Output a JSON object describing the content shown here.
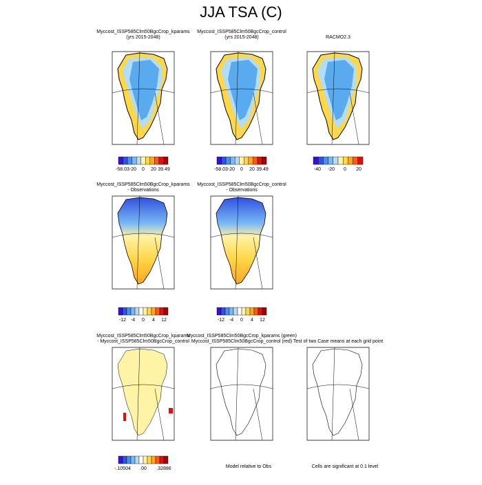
{
  "title": "JJA TSA (C)",
  "panels": [
    {
      "title": [
        "Myccost_ISSP585Clm50BgcCrop_kparams",
        "(yrs 2015-2048)"
      ],
      "colorbar": {
        "colors": [
          "#3a0fd9",
          "#2f52e0",
          "#4a8ff0",
          "#7ab8f5",
          "#b3dcf5",
          "#fff3a6",
          "#ffd84a",
          "#ffa81f",
          "#ff5a10",
          "#e01010",
          "#a80000"
        ],
        "labels": [
          "-58.03",
          "-20",
          "0",
          "20",
          "39.49"
        ]
      }
    },
    {
      "title": [
        "Myccost_ISSP585Clm50BgcCrop_control",
        "(yrs 2015-2048)"
      ],
      "colorbar": {
        "colors": [
          "#3a0fd9",
          "#2f52e0",
          "#4a8ff0",
          "#7ab8f5",
          "#b3dcf5",
          "#fff3a6",
          "#ffd84a",
          "#ffa81f",
          "#ff5a10",
          "#e01010",
          "#a80000"
        ],
        "labels": [
          "-58.03",
          "-20",
          "0",
          "20",
          "39.49"
        ]
      }
    },
    {
      "title": [
        "RACMO2.3"
      ],
      "colorbar": {
        "colors": [
          "#3a0fd9",
          "#2f52e0",
          "#4a8ff0",
          "#7ab8f5",
          "#b3dcf5",
          "#fff3a6",
          "#ffd84a",
          "#ffa81f",
          "#ff5a10",
          "#e01010"
        ],
        "labels": [
          "-40",
          "-20",
          "0",
          "20"
        ]
      }
    },
    {
      "title": [
        "Myccost_ISSP585Clm50BgcCrop_kparams",
        "- Observations"
      ],
      "colorbar": {
        "colors": [
          "#3a0fd9",
          "#2f52e0",
          "#4a8ff0",
          "#7ab8f5",
          "#b3dcf5",
          "#ffffff",
          "#fff3a6",
          "#ffd84a",
          "#ffa81f",
          "#ff5a10",
          "#e01010",
          "#a80000"
        ],
        "labels": [
          "-12",
          "-4",
          "0",
          "4",
          "12"
        ]
      }
    },
    {
      "title": [
        "Myccost_ISSP585Clm50BgcCrop_control",
        "- Observations"
      ],
      "colorbar": {
        "colors": [
          "#3a0fd9",
          "#2f52e0",
          "#4a8ff0",
          "#7ab8f5",
          "#b3dcf5",
          "#ffffff",
          "#fff3a6",
          "#ffd84a",
          "#ffa81f",
          "#ff5a10",
          "#e01010",
          "#a80000"
        ],
        "labels": [
          "-12",
          "-4",
          "0",
          "4",
          "12"
        ]
      }
    },
    {
      "title": [
        "Myccost_ISSP585Clm50BgcCrop_kparams",
        "- Myccost_ISSP585Clm50BgcCrop_control"
      ],
      "colorbar": {
        "colors": [
          "#3a0fd9",
          "#2f52e0",
          "#4a8ff0",
          "#7ab8f5",
          "#b3dcf5",
          "#ffffff",
          "#fff3a6",
          "#ffd84a",
          "#ffa81f",
          "#ff5a10",
          "#e01010",
          "#a80000"
        ],
        "labels": [
          "-.10504",
          ".00",
          ".32886"
        ]
      }
    },
    {
      "title": [
        "Myccost_ISSP585Clm50BgcCrop_kparams (green)",
        "Myccost_ISSP585Clm50BgcCrop_control (red)"
      ],
      "footnote": "Model relative to Obs"
    },
    {
      "title": [
        "Test of two Case means at each grid point"
      ],
      "footnote": "Cells are significant at 0.1 level"
    }
  ]
}
